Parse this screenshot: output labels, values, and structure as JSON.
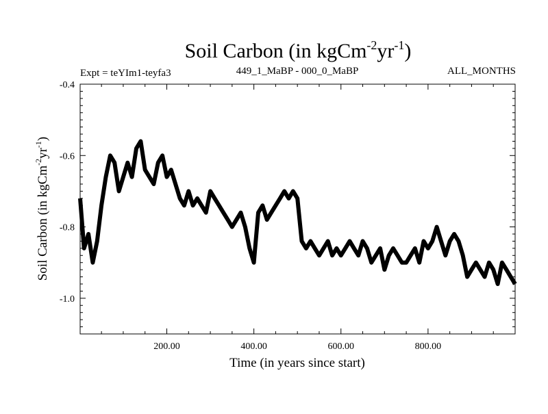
{
  "header": {
    "title_main": "Soil Carbon (in kgCm",
    "title_exp1": "-2",
    "title_mid": "yr",
    "title_exp2": "-1",
    "title_end": ")",
    "expt": "Expt = teYIm1-teyfa3",
    "period": "449_1_MaBP - 000_0_MaBP",
    "months": "ALL_MONTHS"
  },
  "chart_data": {
    "type": "line",
    "title": "Soil Carbon (in kgCm-2yr-1)",
    "xlabel": "Time (in years since start)",
    "ylabel": "Soil Carbon (in kgCm-2yr-1)",
    "ylabel_parts": {
      "main": "Soil Carbon (in kgCm",
      "exp1": "-2",
      "mid": "yr",
      "exp2": "-1",
      "end": ")"
    },
    "xlim": [
      1,
      1000
    ],
    "ylim": [
      -1.1,
      -0.4
    ],
    "x_ticks": [
      200,
      400,
      600,
      800
    ],
    "x_tick_labels": [
      "200.00",
      "400.00",
      "600.00",
      "800.00"
    ],
    "y_ticks": [
      -1.0,
      -0.8,
      -0.6,
      -0.4
    ],
    "y_tick_labels": [
      "-1.0",
      "-0.8",
      "-0.6",
      "-0.4"
    ],
    "grid": false,
    "series": [
      {
        "color": "#000000",
        "x": [
          1,
          10,
          20,
          30,
          40,
          50,
          60,
          70,
          80,
          90,
          100,
          110,
          120,
          130,
          140,
          150,
          160,
          170,
          180,
          190,
          200,
          210,
          220,
          230,
          240,
          250,
          260,
          270,
          280,
          290,
          300,
          310,
          320,
          330,
          340,
          350,
          360,
          370,
          380,
          390,
          400,
          410,
          420,
          430,
          440,
          450,
          460,
          470,
          480,
          490,
          500,
          510,
          520,
          530,
          540,
          550,
          560,
          570,
          580,
          590,
          600,
          610,
          620,
          630,
          640,
          650,
          660,
          670,
          680,
          690,
          700,
          710,
          720,
          730,
          740,
          750,
          760,
          770,
          780,
          790,
          800,
          810,
          820,
          830,
          840,
          850,
          860,
          870,
          880,
          890,
          900,
          910,
          920,
          930,
          940,
          950,
          960,
          970,
          980,
          990,
          1000
        ],
        "y": [
          -0.72,
          -0.86,
          -0.82,
          -0.9,
          -0.84,
          -0.74,
          -0.66,
          -0.6,
          -0.62,
          -0.7,
          -0.66,
          -0.62,
          -0.66,
          -0.58,
          -0.56,
          -0.64,
          -0.66,
          -0.68,
          -0.62,
          -0.6,
          -0.66,
          -0.64,
          -0.68,
          -0.72,
          -0.74,
          -0.7,
          -0.74,
          -0.72,
          -0.74,
          -0.76,
          -0.7,
          -0.72,
          -0.74,
          -0.76,
          -0.78,
          -0.8,
          -0.78,
          -0.76,
          -0.8,
          -0.86,
          -0.9,
          -0.76,
          -0.74,
          -0.78,
          -0.76,
          -0.74,
          -0.72,
          -0.7,
          -0.72,
          -0.7,
          -0.72,
          -0.84,
          -0.86,
          -0.84,
          -0.86,
          -0.88,
          -0.86,
          -0.84,
          -0.88,
          -0.86,
          -0.88,
          -0.86,
          -0.84,
          -0.86,
          -0.88,
          -0.84,
          -0.86,
          -0.9,
          -0.88,
          -0.86,
          -0.92,
          -0.88,
          -0.86,
          -0.88,
          -0.9,
          -0.9,
          -0.88,
          -0.86,
          -0.9,
          -0.84,
          -0.86,
          -0.84,
          -0.8,
          -0.84,
          -0.88,
          -0.84,
          -0.82,
          -0.84,
          -0.88,
          -0.94,
          -0.92,
          -0.9,
          -0.92,
          -0.94,
          -0.9,
          -0.92,
          -0.96,
          -0.9,
          -0.92,
          -0.94,
          -0.96
        ]
      }
    ]
  }
}
